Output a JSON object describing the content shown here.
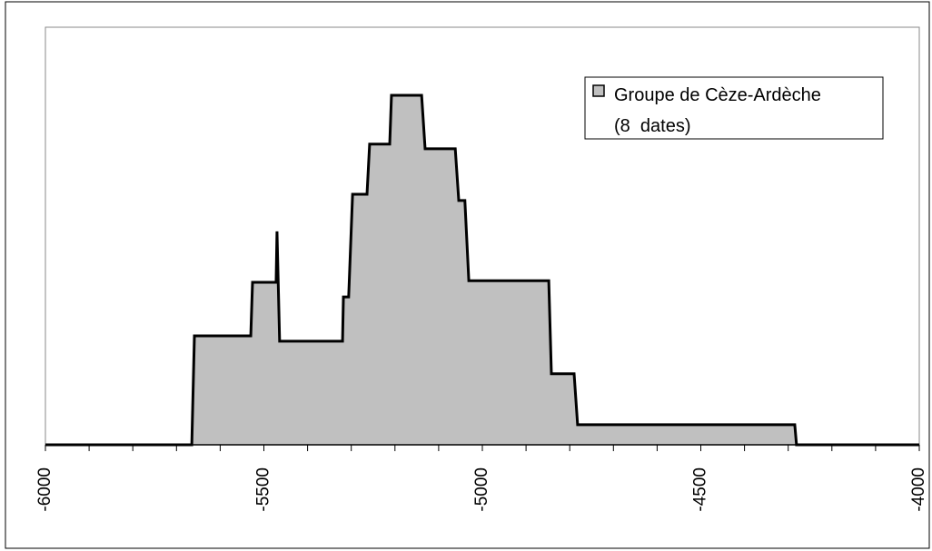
{
  "chart_data": {
    "type": "step-area",
    "x": [
      -6000,
      -5665,
      -5659,
      -5530,
      -5526,
      -5472,
      -5470,
      -5464,
      -5320,
      -5318,
      -5306,
      -5297,
      -5264,
      -5258,
      -5212,
      -5208,
      -5139,
      -5131,
      -5062,
      -5054,
      -5040,
      -5031,
      -4848,
      -4842,
      -4790,
      -4782,
      -4285,
      -4281,
      -4000
    ],
    "series": [
      {
        "name": "Groupe de Cèze-Ardèche\n(8  dates)",
        "color": "#c0c0c0",
        "values": [
          0,
          0,
          26.1,
          26.1,
          38.9,
          38.9,
          51.1,
          24.8,
          24.8,
          35.4,
          35.4,
          60,
          60,
          72,
          72,
          83.7,
          83.7,
          70.9,
          70.9,
          58.5,
          58.5,
          39.3,
          39.3,
          17,
          17,
          4.8,
          4.8,
          0,
          0
        ]
      }
    ],
    "xlim": [
      -6000,
      -4000
    ],
    "ylim": [
      0,
      100
    ],
    "xticks": [
      -6000,
      -5500,
      -5000,
      -4500,
      -4000
    ],
    "xminorticks": [
      -5900,
      -5800,
      -5700,
      -5600,
      -5400,
      -5300,
      -5200,
      -5100,
      -4900,
      -4800,
      -4700,
      -4600,
      -4400,
      -4300,
      -4200,
      -4100
    ],
    "legend": "top-right"
  }
}
